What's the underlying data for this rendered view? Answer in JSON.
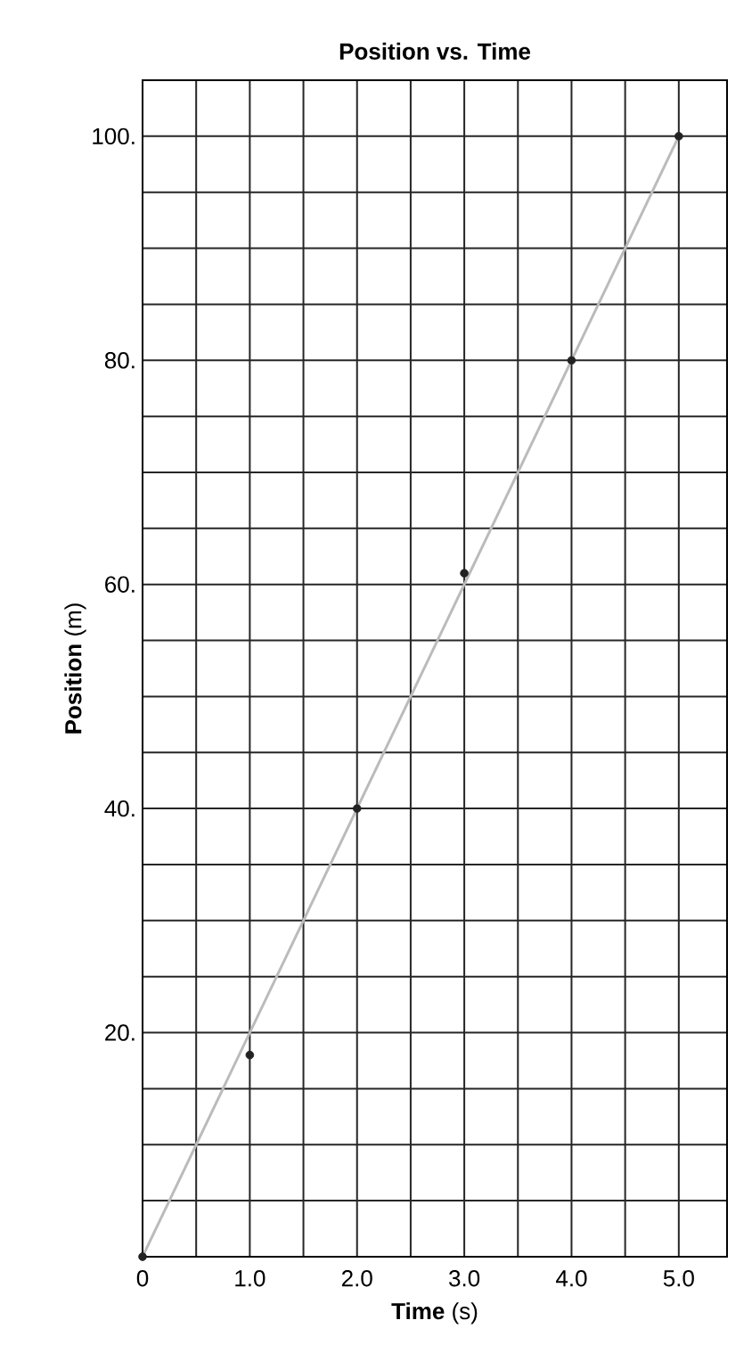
{
  "chart_data": {
    "type": "scatter",
    "title": "Position vs. Time",
    "xlabel": "**Time** (s)",
    "ylabel": "**Position** (m)",
    "series": [
      {
        "color": "#222222",
        "marker": "circle",
        "x": [
          0,
          1,
          2,
          3,
          4,
          5
        ],
        "values": [
          0,
          18,
          40,
          61,
          80,
          100
        ]
      },
      {
        "type": "line",
        "color": "#bbbbbb",
        "marker": "none",
        "line_style": "solid",
        "x": [
          0,
          5
        ],
        "values": [
          0,
          100
        ]
      }
    ],
    "xlim": [
      0,
      5.45
    ],
    "ylim": [
      0,
      105
    ],
    "xticks": [
      {
        "value": 0,
        "label": "0"
      },
      {
        "value": 0.5,
        "label": null
      },
      {
        "value": 1,
        "label": "1.0"
      },
      {
        "value": 1.5,
        "label": null
      },
      {
        "value": 2,
        "label": "2.0"
      },
      {
        "value": 2.5,
        "label": null
      },
      {
        "value": 3,
        "label": "3.0"
      },
      {
        "value": 3.5,
        "label": null
      },
      {
        "value": 4,
        "label": "4.0"
      },
      {
        "value": 4.5,
        "label": null
      },
      {
        "value": 5,
        "label": "5.0"
      }
    ],
    "yticks": [
      {
        "value": 0,
        "label": null
      },
      {
        "value": 5,
        "label": null
      },
      {
        "value": 10,
        "label": null
      },
      {
        "value": 15,
        "label": null
      },
      {
        "value": 20,
        "label": "20."
      },
      {
        "value": 25,
        "label": null
      },
      {
        "value": 30,
        "label": null
      },
      {
        "value": 35,
        "label": null
      },
      {
        "value": 40,
        "label": "40."
      },
      {
        "value": 45,
        "label": null
      },
      {
        "value": 50,
        "label": null
      },
      {
        "value": 55,
        "label": null
      },
      {
        "value": 60,
        "label": "60."
      },
      {
        "value": 65,
        "label": null
      },
      {
        "value": 70,
        "label": null
      },
      {
        "value": 75,
        "label": null
      },
      {
        "value": 80,
        "label": "80."
      },
      {
        "value": 85,
        "label": null
      },
      {
        "value": 90,
        "label": null
      },
      {
        "value": 95,
        "label": null
      },
      {
        "value": 100,
        "label": "100."
      }
    ],
    "grid": true
  }
}
